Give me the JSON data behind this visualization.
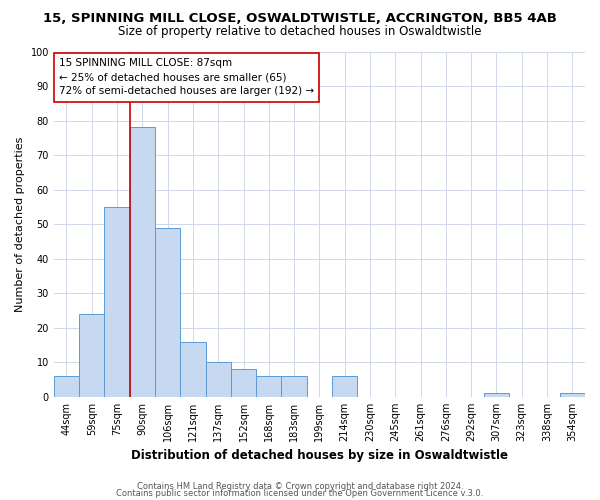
{
  "title": "15, SPINNING MILL CLOSE, OSWALDTWISTLE, ACCRINGTON, BB5 4AB",
  "subtitle": "Size of property relative to detached houses in Oswaldtwistle",
  "xlabel": "Distribution of detached houses by size in Oswaldtwistle",
  "ylabel": "Number of detached properties",
  "bar_labels": [
    "44sqm",
    "59sqm",
    "75sqm",
    "90sqm",
    "106sqm",
    "121sqm",
    "137sqm",
    "152sqm",
    "168sqm",
    "183sqm",
    "199sqm",
    "214sqm",
    "230sqm",
    "245sqm",
    "261sqm",
    "276sqm",
    "292sqm",
    "307sqm",
    "323sqm",
    "338sqm",
    "354sqm"
  ],
  "bar_values": [
    6,
    24,
    55,
    78,
    49,
    16,
    10,
    8,
    6,
    6,
    0,
    6,
    0,
    0,
    0,
    0,
    0,
    1,
    0,
    0,
    1
  ],
  "bar_color": "#c6d9f1",
  "bar_edge_color": "#5b9bd5",
  "vline_x_index": 3,
  "vline_color": "#cc0000",
  "annotation_line1": "15 SPINNING MILL CLOSE: 87sqm",
  "annotation_line2": "← 25% of detached houses are smaller (65)",
  "annotation_line3": "72% of semi-detached houses are larger (192) →",
  "annotation_box_color": "#ffffff",
  "annotation_box_edge": "#cc0000",
  "ylim": [
    0,
    100
  ],
  "footer1": "Contains HM Land Registry data © Crown copyright and database right 2024.",
  "footer2": "Contains public sector information licensed under the Open Government Licence v.3.0.",
  "bg_color": "#ffffff",
  "grid_color": "#d0d8e8",
  "title_fontsize": 9.5,
  "subtitle_fontsize": 8.5,
  "xlabel_fontsize": 8.5,
  "ylabel_fontsize": 8,
  "tick_fontsize": 7,
  "annotation_fontsize": 7.5,
  "footer_fontsize": 6
}
